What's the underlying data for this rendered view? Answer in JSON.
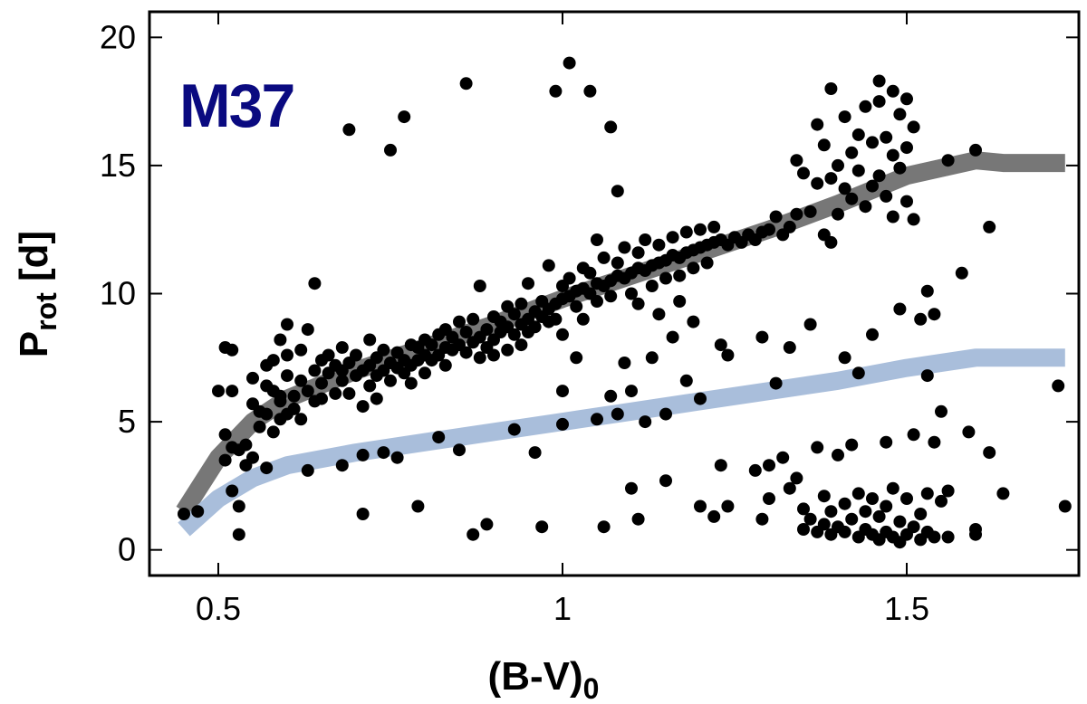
{
  "chart_data": {
    "type": "scatter",
    "title": "",
    "annotation": "M37",
    "annotation_color": "#0a0a80",
    "xlabel": {
      "main": "(B-V)",
      "sub": "0"
    },
    "ylabel": {
      "main": "P",
      "sub": "rot",
      "suffix": " [d]"
    },
    "xlim": [
      0.4,
      1.75
    ],
    "ylim": [
      -1,
      21
    ],
    "xticks": [
      0.5,
      1.0,
      1.5
    ],
    "xtick_labels": [
      "0.5",
      "1",
      "1.5"
    ],
    "yticks": [
      0,
      5,
      10,
      15,
      20
    ],
    "ytick_labels": [
      "0",
      "5",
      "10",
      "15",
      "20"
    ],
    "grid": false,
    "point_color": "#000000",
    "curves": [
      {
        "color": "#777777",
        "x": [
          0.45,
          0.5,
          0.55,
          0.6,
          0.7,
          0.8,
          0.9,
          1.0,
          1.1,
          1.2,
          1.3,
          1.4,
          1.5,
          1.6,
          1.64,
          1.73
        ],
        "y": [
          1.5,
          3.6,
          5.0,
          5.9,
          7.0,
          7.9,
          8.8,
          9.8,
          10.7,
          11.6,
          12.5,
          13.5,
          14.6,
          15.2,
          15.1,
          15.1
        ]
      },
      {
        "color": "#a9bedb",
        "x": [
          0.45,
          0.5,
          0.55,
          0.6,
          0.7,
          0.8,
          0.9,
          1.0,
          1.1,
          1.2,
          1.3,
          1.4,
          1.5,
          1.6,
          1.64,
          1.73
        ],
        "y": [
          0.8,
          2.0,
          2.8,
          3.3,
          3.8,
          4.2,
          4.6,
          5.0,
          5.4,
          5.8,
          6.2,
          6.6,
          7.1,
          7.5,
          7.5,
          7.5
        ]
      }
    ],
    "points": [
      [
        0.45,
        1.4
      ],
      [
        0.47,
        1.5
      ],
      [
        0.5,
        6.2
      ],
      [
        0.51,
        4.5
      ],
      [
        0.51,
        7.9
      ],
      [
        0.51,
        3.5
      ],
      [
        0.52,
        2.3
      ],
      [
        0.52,
        4.0
      ],
      [
        0.52,
        6.2
      ],
      [
        0.52,
        7.8
      ],
      [
        0.53,
        3.9
      ],
      [
        0.53,
        0.6
      ],
      [
        0.53,
        1.7
      ],
      [
        0.54,
        4.1
      ],
      [
        0.54,
        3.3
      ],
      [
        0.55,
        5.7
      ],
      [
        0.55,
        6.7
      ],
      [
        0.55,
        3.6
      ],
      [
        0.56,
        4.8
      ],
      [
        0.56,
        5.4
      ],
      [
        0.57,
        5.3
      ],
      [
        0.57,
        6.4
      ],
      [
        0.57,
        7.2
      ],
      [
        0.57,
        3.2
      ],
      [
        0.58,
        4.6
      ],
      [
        0.58,
        6.2
      ],
      [
        0.58,
        7.4
      ],
      [
        0.59,
        5.1
      ],
      [
        0.59,
        5.8
      ],
      [
        0.59,
        6.0
      ],
      [
        0.59,
        8.2
      ],
      [
        0.6,
        6.8
      ],
      [
        0.6,
        5.3
      ],
      [
        0.6,
        8.8
      ],
      [
        0.6,
        7.6
      ],
      [
        0.61,
        5.5
      ],
      [
        0.61,
        6.0
      ],
      [
        0.62,
        6.6
      ],
      [
        0.62,
        7.8
      ],
      [
        0.62,
        5.1
      ],
      [
        0.63,
        6.2
      ],
      [
        0.63,
        3.1
      ],
      [
        0.63,
        8.6
      ],
      [
        0.64,
        5.8
      ],
      [
        0.64,
        7.0
      ],
      [
        0.64,
        10.4
      ],
      [
        0.65,
        6.5
      ],
      [
        0.65,
        7.4
      ],
      [
        0.65,
        5.9
      ],
      [
        0.66,
        6.9
      ],
      [
        0.66,
        7.6
      ],
      [
        0.67,
        6.1
      ],
      [
        0.67,
        7.2
      ],
      [
        0.68,
        7.0
      ],
      [
        0.68,
        7.9
      ],
      [
        0.68,
        6.6
      ],
      [
        0.68,
        3.3
      ],
      [
        0.69,
        16.4
      ],
      [
        0.69,
        7.3
      ],
      [
        0.69,
        6.1
      ],
      [
        0.7,
        6.8
      ],
      [
        0.7,
        7.6
      ],
      [
        0.71,
        7.0
      ],
      [
        0.71,
        3.7
      ],
      [
        0.71,
        5.6
      ],
      [
        0.71,
        1.4
      ],
      [
        0.72,
        7.2
      ],
      [
        0.72,
        8.2
      ],
      [
        0.72,
        6.4
      ],
      [
        0.73,
        6.8
      ],
      [
        0.73,
        7.5
      ],
      [
        0.73,
        5.9
      ],
      [
        0.74,
        7.0
      ],
      [
        0.74,
        7.8
      ],
      [
        0.74,
        3.8
      ],
      [
        0.75,
        7.3
      ],
      [
        0.75,
        6.6
      ],
      [
        0.75,
        15.6
      ],
      [
        0.76,
        7.1
      ],
      [
        0.76,
        7.7
      ],
      [
        0.76,
        3.6
      ],
      [
        0.77,
        6.9
      ],
      [
        0.77,
        7.4
      ],
      [
        0.77,
        16.9
      ],
      [
        0.78,
        7.2
      ],
      [
        0.78,
        8.0
      ],
      [
        0.78,
        6.5
      ],
      [
        0.79,
        7.4
      ],
      [
        0.79,
        7.9
      ],
      [
        0.79,
        1.7
      ],
      [
        0.8,
        7.6
      ],
      [
        0.8,
        8.2
      ],
      [
        0.8,
        6.9
      ],
      [
        0.81,
        7.4
      ],
      [
        0.81,
        8.0
      ],
      [
        0.82,
        7.6
      ],
      [
        0.82,
        8.4
      ],
      [
        0.82,
        4.4
      ],
      [
        0.83,
        7.9
      ],
      [
        0.83,
        8.6
      ],
      [
        0.83,
        7.2
      ],
      [
        0.84,
        7.8
      ],
      [
        0.84,
        8.3
      ],
      [
        0.85,
        8.0
      ],
      [
        0.85,
        8.9
      ],
      [
        0.85,
        3.9
      ],
      [
        0.86,
        7.7
      ],
      [
        0.86,
        8.5
      ],
      [
        0.86,
        18.2
      ],
      [
        0.87,
        8.1
      ],
      [
        0.87,
        9.0
      ],
      [
        0.87,
        0.6
      ],
      [
        0.88,
        8.3
      ],
      [
        0.88,
        7.5
      ],
      [
        0.88,
        10.3
      ],
      [
        0.89,
        8.6
      ],
      [
        0.89,
        7.9
      ],
      [
        0.89,
        1.0
      ],
      [
        0.9,
        8.2
      ],
      [
        0.9,
        9.1
      ],
      [
        0.9,
        7.6
      ],
      [
        0.91,
        8.5
      ],
      [
        0.91,
        8.9
      ],
      [
        0.92,
        8.7
      ],
      [
        0.92,
        7.8
      ],
      [
        0.92,
        9.5
      ],
      [
        0.93,
        8.4
      ],
      [
        0.93,
        9.2
      ],
      [
        0.93,
        4.7
      ],
      [
        0.94,
        8.8
      ],
      [
        0.94,
        9.6
      ],
      [
        0.94,
        8.0
      ],
      [
        0.95,
        9.0
      ],
      [
        0.95,
        8.5
      ],
      [
        0.95,
        10.4
      ],
      [
        0.96,
        9.3
      ],
      [
        0.96,
        8.7
      ],
      [
        0.96,
        3.8
      ],
      [
        0.97,
        9.1
      ],
      [
        0.97,
        9.7
      ],
      [
        0.97,
        0.9
      ],
      [
        0.98,
        9.4
      ],
      [
        0.98,
        8.9
      ],
      [
        0.98,
        11.1
      ],
      [
        0.99,
        9.6
      ],
      [
        0.99,
        9.0
      ],
      [
        0.99,
        17.9
      ],
      [
        1.0,
        9.8
      ],
      [
        1.0,
        10.3
      ],
      [
        1.0,
        8.4
      ],
      [
        1.0,
        4.9
      ],
      [
        1.0,
        6.2
      ],
      [
        1.01,
        9.9
      ],
      [
        1.01,
        10.6
      ],
      [
        1.01,
        19.0
      ],
      [
        1.02,
        10.1
      ],
      [
        1.02,
        9.5
      ],
      [
        1.02,
        7.5
      ],
      [
        1.03,
        10.2
      ],
      [
        1.03,
        11.0
      ],
      [
        1.03,
        9.0
      ],
      [
        1.04,
        10.0
      ],
      [
        1.04,
        10.8
      ],
      [
        1.04,
        17.9
      ],
      [
        1.05,
        10.4
      ],
      [
        1.05,
        9.7
      ],
      [
        1.05,
        5.1
      ],
      [
        1.05,
        12.1
      ],
      [
        1.06,
        10.3
      ],
      [
        1.06,
        11.4
      ],
      [
        1.06,
        0.9
      ],
      [
        1.07,
        10.5
      ],
      [
        1.07,
        9.9
      ],
      [
        1.07,
        16.5
      ],
      [
        1.07,
        6.0
      ],
      [
        1.08,
        10.7
      ],
      [
        1.08,
        11.2
      ],
      [
        1.08,
        14.0
      ],
      [
        1.08,
        5.3
      ],
      [
        1.09,
        10.6
      ],
      [
        1.09,
        11.8
      ],
      [
        1.09,
        7.3
      ],
      [
        1.1,
        10.8
      ],
      [
        1.1,
        10.0
      ],
      [
        1.1,
        2.4
      ],
      [
        1.1,
        6.2
      ],
      [
        1.11,
        11.0
      ],
      [
        1.11,
        11.6
      ],
      [
        1.11,
        9.6
      ],
      [
        1.11,
        1.2
      ],
      [
        1.12,
        10.9
      ],
      [
        1.12,
        12.1
      ],
      [
        1.12,
        5.0
      ],
      [
        1.13,
        11.1
      ],
      [
        1.13,
        10.3
      ],
      [
        1.13,
        7.5
      ],
      [
        1.14,
        11.2
      ],
      [
        1.14,
        11.9
      ],
      [
        1.14,
        9.2
      ],
      [
        1.15,
        11.3
      ],
      [
        1.15,
        10.6
      ],
      [
        1.15,
        5.3
      ],
      [
        1.15,
        2.7
      ],
      [
        1.16,
        11.5
      ],
      [
        1.16,
        12.2
      ],
      [
        1.16,
        8.3
      ],
      [
        1.17,
        11.4
      ],
      [
        1.17,
        10.7
      ],
      [
        1.17,
        9.7
      ],
      [
        1.18,
        11.6
      ],
      [
        1.18,
        12.4
      ],
      [
        1.18,
        6.6
      ],
      [
        1.19,
        11.7
      ],
      [
        1.19,
        11.0
      ],
      [
        1.19,
        8.9
      ],
      [
        1.2,
        11.8
      ],
      [
        1.2,
        12.5
      ],
      [
        1.2,
        5.9
      ],
      [
        1.2,
        1.7
      ],
      [
        1.21,
        11.9
      ],
      [
        1.21,
        11.2
      ],
      [
        1.22,
        12.0
      ],
      [
        1.22,
        12.6
      ],
      [
        1.22,
        1.3
      ],
      [
        1.23,
        12.1
      ],
      [
        1.23,
        8.0
      ],
      [
        1.23,
        3.3
      ],
      [
        1.24,
        11.9
      ],
      [
        1.24,
        7.6
      ],
      [
        1.24,
        1.7
      ],
      [
        1.25,
        12.2
      ],
      [
        1.26,
        12.0
      ],
      [
        1.27,
        12.3
      ],
      [
        1.28,
        12.1
      ],
      [
        1.28,
        3.1
      ],
      [
        1.29,
        12.4
      ],
      [
        1.29,
        8.3
      ],
      [
        1.29,
        1.2
      ],
      [
        1.3,
        12.5
      ],
      [
        1.3,
        3.3
      ],
      [
        1.3,
        2.0
      ],
      [
        1.31,
        13.0
      ],
      [
        1.31,
        6.5
      ],
      [
        1.32,
        12.3
      ],
      [
        1.32,
        3.6
      ],
      [
        1.33,
        12.6
      ],
      [
        1.33,
        7.9
      ],
      [
        1.33,
        2.4
      ],
      [
        1.34,
        13.1
      ],
      [
        1.34,
        15.2
      ],
      [
        1.34,
        2.8
      ],
      [
        1.35,
        14.7
      ],
      [
        1.35,
        1.6
      ],
      [
        1.35,
        0.8
      ],
      [
        1.36,
        13.2
      ],
      [
        1.36,
        8.8
      ],
      [
        1.36,
        1.2
      ],
      [
        1.37,
        16.6
      ],
      [
        1.37,
        14.3
      ],
      [
        1.37,
        4.0
      ],
      [
        1.37,
        0.7
      ],
      [
        1.38,
        15.8
      ],
      [
        1.38,
        12.3
      ],
      [
        1.38,
        2.1
      ],
      [
        1.38,
        1.0
      ],
      [
        1.39,
        18.0
      ],
      [
        1.39,
        14.5
      ],
      [
        1.39,
        12.0
      ],
      [
        1.39,
        1.5
      ],
      [
        1.39,
        0.6
      ],
      [
        1.4,
        15.0
      ],
      [
        1.4,
        13.1
      ],
      [
        1.4,
        3.7
      ],
      [
        1.4,
        0.9
      ],
      [
        1.41,
        16.9
      ],
      [
        1.41,
        14.1
      ],
      [
        1.41,
        7.5
      ],
      [
        1.41,
        1.8
      ],
      [
        1.41,
        0.7
      ],
      [
        1.42,
        15.5
      ],
      [
        1.42,
        13.7
      ],
      [
        1.42,
        4.1
      ],
      [
        1.42,
        1.2
      ],
      [
        1.43,
        16.2
      ],
      [
        1.43,
        14.8
      ],
      [
        1.43,
        6.9
      ],
      [
        1.43,
        2.2
      ],
      [
        1.43,
        0.5
      ],
      [
        1.44,
        17.3
      ],
      [
        1.44,
        13.4
      ],
      [
        1.44,
        1.5
      ],
      [
        1.44,
        0.8
      ],
      [
        1.45,
        15.9
      ],
      [
        1.45,
        14.2
      ],
      [
        1.45,
        8.4
      ],
      [
        1.45,
        2.0
      ],
      [
        1.45,
        0.6
      ],
      [
        1.46,
        18.3
      ],
      [
        1.46,
        17.5
      ],
      [
        1.46,
        14.6
      ],
      [
        1.46,
        1.3
      ],
      [
        1.46,
        0.4
      ],
      [
        1.47,
        16.1
      ],
      [
        1.47,
        13.8
      ],
      [
        1.47,
        4.2
      ],
      [
        1.47,
        1.7
      ],
      [
        1.47,
        0.7
      ],
      [
        1.48,
        17.9
      ],
      [
        1.48,
        15.4
      ],
      [
        1.48,
        13.0
      ],
      [
        1.48,
        2.4
      ],
      [
        1.48,
        0.5
      ],
      [
        1.49,
        17.0
      ],
      [
        1.49,
        14.9
      ],
      [
        1.49,
        9.4
      ],
      [
        1.49,
        1.1
      ],
      [
        1.49,
        0.3
      ],
      [
        1.5,
        17.6
      ],
      [
        1.5,
        15.7
      ],
      [
        1.5,
        13.6
      ],
      [
        1.5,
        2.0
      ],
      [
        1.5,
        0.6
      ],
      [
        1.51,
        16.5
      ],
      [
        1.51,
        12.9
      ],
      [
        1.51,
        4.5
      ],
      [
        1.51,
        0.9
      ],
      [
        1.52,
        9.0
      ],
      [
        1.52,
        1.4
      ],
      [
        1.52,
        0.4
      ],
      [
        1.53,
        10.1
      ],
      [
        1.53,
        6.8
      ],
      [
        1.53,
        2.2
      ],
      [
        1.53,
        0.7
      ],
      [
        1.54,
        9.2
      ],
      [
        1.54,
        4.2
      ],
      [
        1.54,
        0.5
      ],
      [
        1.55,
        5.4
      ],
      [
        1.55,
        1.9
      ],
      [
        1.56,
        15.2
      ],
      [
        1.56,
        2.3
      ],
      [
        1.56,
        0.5
      ],
      [
        1.58,
        10.8
      ],
      [
        1.59,
        4.6
      ],
      [
        1.6,
        15.6
      ],
      [
        1.6,
        0.8
      ],
      [
        1.6,
        0.6
      ],
      [
        1.62,
        12.6
      ],
      [
        1.62,
        3.8
      ],
      [
        1.64,
        2.2
      ],
      [
        1.72,
        6.4
      ],
      [
        1.73,
        1.7
      ]
    ]
  }
}
